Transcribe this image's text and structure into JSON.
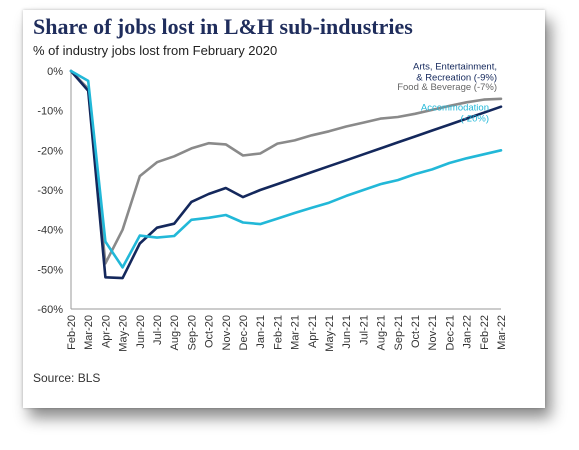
{
  "title": "Share of jobs lost in L&H sub-industries",
  "subtitle": "% of industry jobs lost from February 2020",
  "source": "Source: BLS",
  "colors": {
    "title": "#1f2d5c",
    "food_beverage": "#8a8a8a",
    "arts_entertainment": "#14285c",
    "accommodation": "#22b8d8",
    "axis": "#999999"
  },
  "chart_data": {
    "type": "line",
    "xlabel": "",
    "ylabel": "",
    "ylim": [
      -60,
      0
    ],
    "yticks": [
      0,
      -10,
      -20,
      -30,
      -40,
      -50,
      -60
    ],
    "ytick_labels": [
      "0%",
      "-10%",
      "-20%",
      "-30%",
      "-40%",
      "-50%",
      "-60%"
    ],
    "grid": false,
    "legend": "inline-labels",
    "x": [
      "Feb-20",
      "Mar-20",
      "Apr-20",
      "May-20",
      "Jun-20",
      "Jul-20",
      "Aug-20",
      "Sep-20",
      "Oct-20",
      "Nov-20",
      "Dec-20",
      "Jan-21",
      "Feb-21",
      "Mar-21",
      "Apr-21",
      "May-21",
      "Jun-21",
      "Jul-21",
      "Aug-21",
      "Sep-21",
      "Oct-21",
      "Nov-21",
      "Dec-21",
      "Jan-22",
      "Feb-22",
      "Mar-22"
    ],
    "series": [
      {
        "name": "Food & Beverage",
        "label_lines": [
          "Food & Beverage (-7%)"
        ],
        "color": "#8a8a8a",
        "values": [
          0,
          -4.5,
          -48.5,
          -40,
          -26.5,
          -23,
          -21.5,
          -19.5,
          -18.2,
          -18.5,
          -21.3,
          -20.8,
          -18.3,
          -17.5,
          -16.2,
          -15.2,
          -14,
          -13,
          -12,
          -11.6,
          -10.8,
          -9.8,
          -8.8,
          -7.9,
          -7.2,
          -7
        ]
      },
      {
        "name": "Arts, Entertainment, & Recreation",
        "label_lines": [
          "Arts, Entertainment,",
          "& Recreation (-9%)"
        ],
        "color": "#14285c",
        "values": [
          0,
          -5,
          -52,
          -52.2,
          -43.5,
          -39.5,
          -38.5,
          -33,
          -31,
          -29.5,
          -31.8,
          -30,
          -28.5,
          -27,
          -25.5,
          -24,
          -22.5,
          -21,
          -19.5,
          -18,
          -16.5,
          -15,
          -13.5,
          -12,
          -10.5,
          -9
        ]
      },
      {
        "name": "Accommodation",
        "label_lines": [
          "Accommodation",
          "(-20%)"
        ],
        "color": "#22b8d8",
        "values": [
          0,
          -2.5,
          -43,
          -49.5,
          -41.5,
          -42,
          -41.6,
          -37.5,
          -37,
          -36.3,
          -38.2,
          -38.6,
          -37.2,
          -35.8,
          -34.5,
          -33.2,
          -31.5,
          -30,
          -28.5,
          -27.5,
          -26,
          -24.8,
          -23.2,
          -22,
          -21,
          -20
        ]
      }
    ]
  }
}
